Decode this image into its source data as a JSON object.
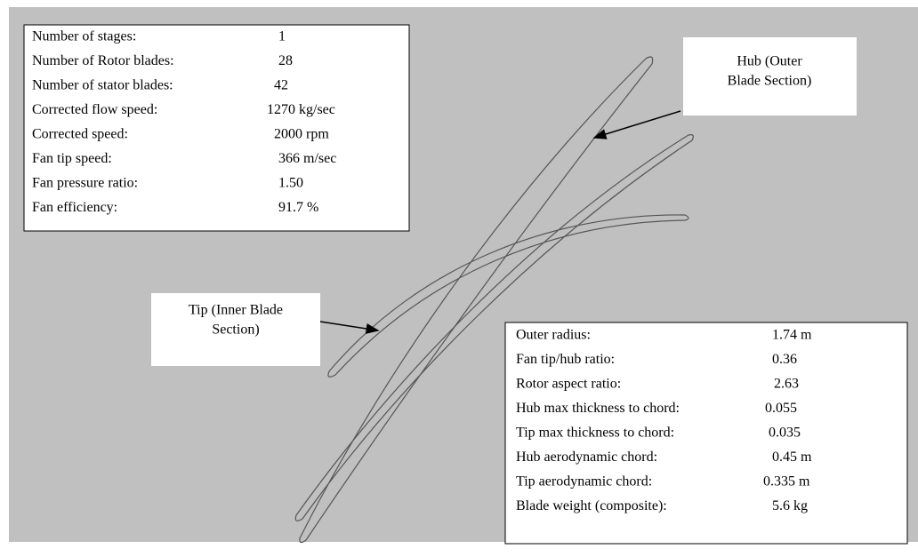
{
  "specs_left": {
    "rows": [
      [
        "Number of stages:",
        "1"
      ],
      [
        "Number of Rotor blades:",
        "28"
      ],
      [
        "Number of stator blades:",
        "42"
      ],
      [
        "Corrected  flow speed:",
        "1270 kg/sec"
      ],
      [
        "Corrected  speed:",
        "2000 rpm"
      ],
      [
        "Fan tip speed:",
        "366 m/sec"
      ],
      [
        "Fan pressure ratio:",
        "1.50"
      ],
      [
        "Fan efficiency:",
        "91.7 %"
      ]
    ]
  },
  "specs_right": {
    "rows": [
      [
        "Outer radius:",
        "1.74 m"
      ],
      [
        "Fan tip/hub ratio:",
        "0.36"
      ],
      [
        "Rotor aspect ratio:",
        "2.63"
      ],
      [
        "Hub max thickness to chord:",
        "0.055"
      ],
      [
        "Tip max thickness to chord:",
        "0.035"
      ],
      [
        "Hub aerodynamic chord:",
        "0.45 m"
      ],
      [
        "Tip aerodynamic chord:",
        "0.335 m"
      ],
      [
        "Blade weight (composite):",
        "5.6 kg"
      ]
    ]
  },
  "callouts": [
    {
      "lines": [
        "Hub (Outer",
        "Blade Section)"
      ]
    },
    {
      "lines": [
        "Tip (Inner Blade",
        "Section)"
      ]
    }
  ]
}
